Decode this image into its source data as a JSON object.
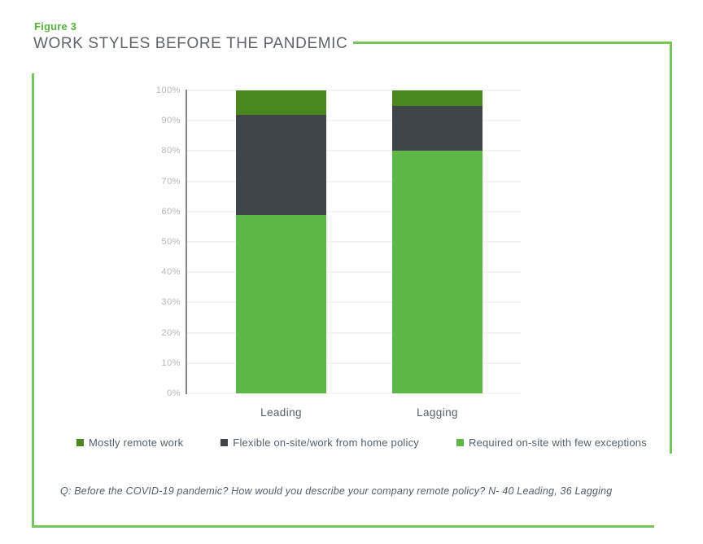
{
  "figure_label": "Figure 3",
  "title": "WORK STYLES BEFORE THE PANDEMIC",
  "footnote": "Q: Before the COVID-19 pandemic? How would you describe your company remote policy? N- 40 Leading, 36 Lagging",
  "colors": {
    "dark_green": "#4a871f",
    "dark_gray": "#3f4548",
    "light_green": "#5cb746",
    "frame_green": "#73c75c",
    "figure_label_green": "#56b33e",
    "title_gray": "#606469",
    "axis_label_gray": "#b4b7ba",
    "gridline": "#f4f4f4",
    "axis_line": "#85878a"
  },
  "chart_data": {
    "type": "bar",
    "stacked": true,
    "title": "WORK STYLES BEFORE THE PANDEMIC",
    "categories": [
      "Leading",
      "Lagging"
    ],
    "series": [
      {
        "name": "Mostly remote work",
        "color": "#4a871f",
        "values": [
          8,
          5
        ]
      },
      {
        "name": "Flexible on-site/work from home policy",
        "color": "#3f4548",
        "values": [
          33,
          15
        ]
      },
      {
        "name": "Required on-site with few exceptions",
        "color": "#5cb746",
        "values": [
          59,
          80
        ]
      }
    ],
    "xlabel": "",
    "ylabel": "",
    "ylim": [
      0,
      100
    ],
    "y_tick_labels": [
      "0%",
      "10%",
      "20%",
      "30%",
      "40%",
      "50%",
      "60%",
      "70%",
      "80%",
      "90%",
      "100%"
    ],
    "grid": true,
    "legend_position": "bottom"
  }
}
